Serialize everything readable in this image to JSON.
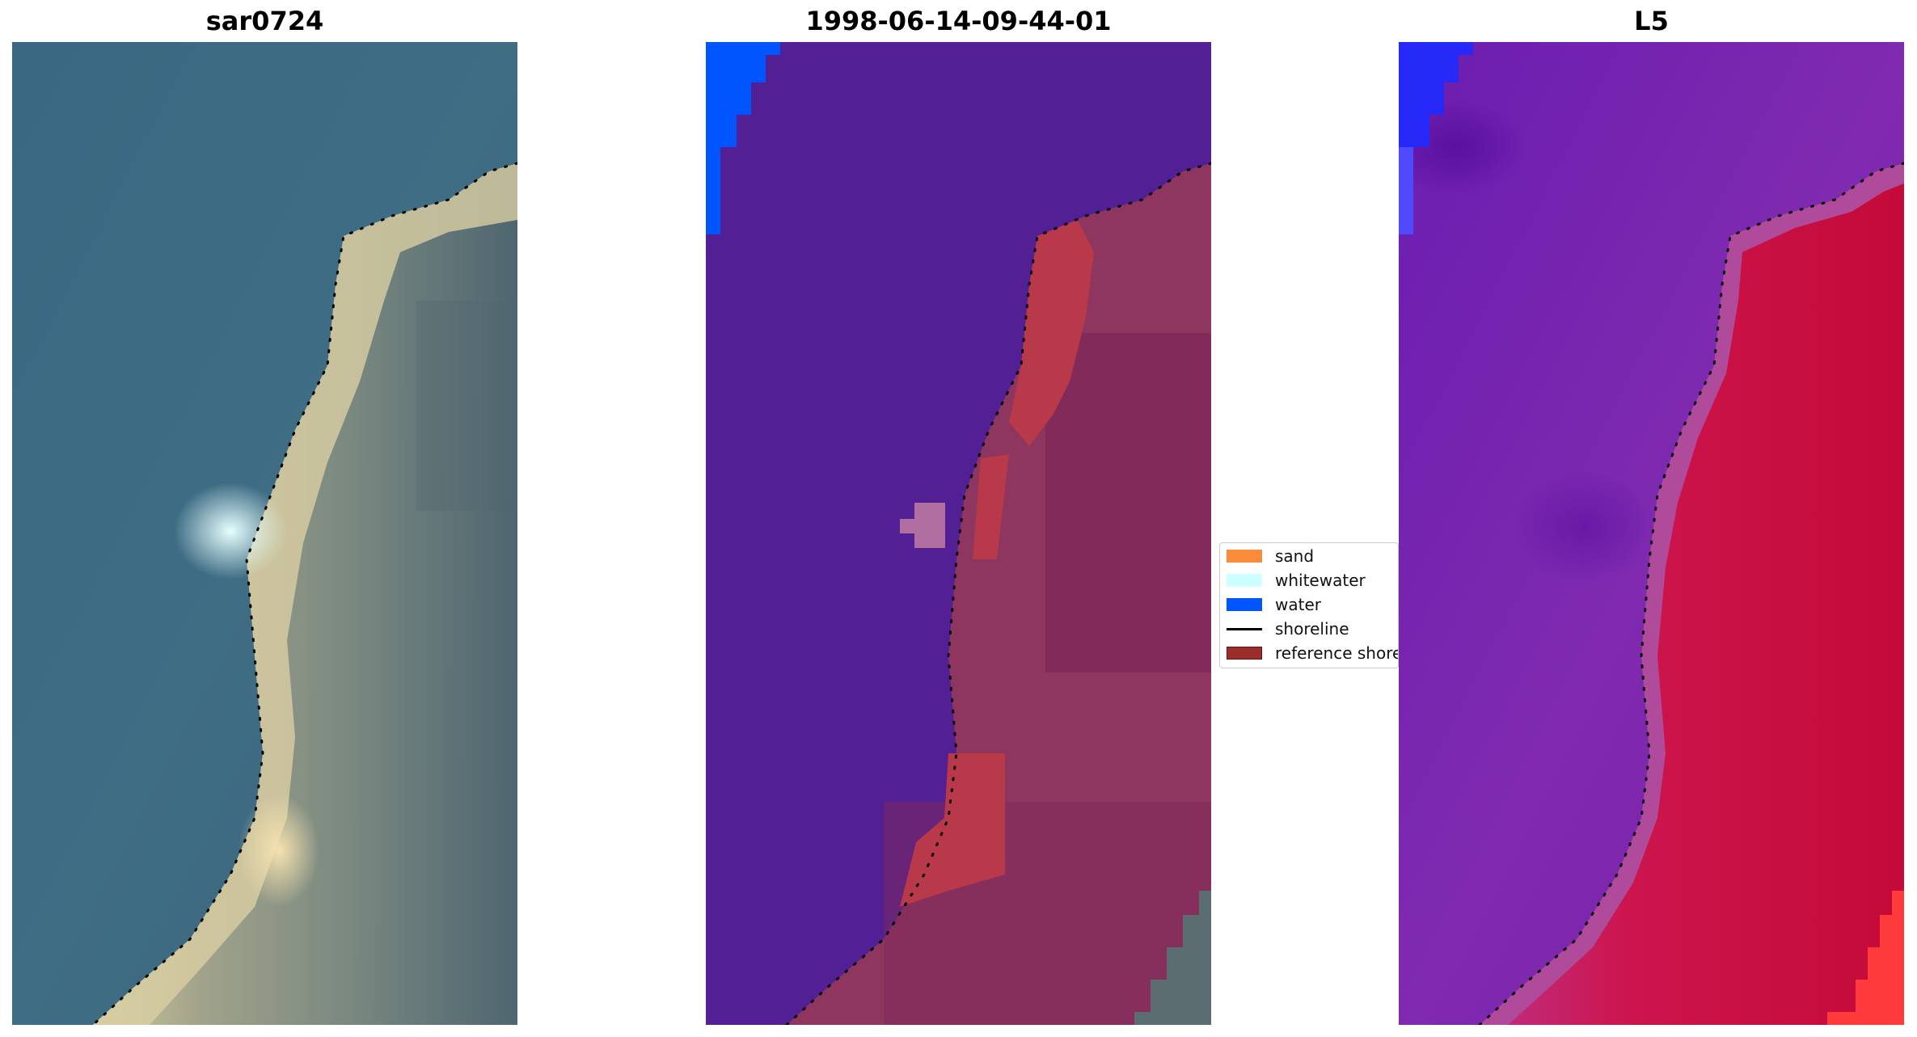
{
  "panels": [
    {
      "title": "sar0724"
    },
    {
      "title": "1998-06-14-09-44-01"
    },
    {
      "title": "L5"
    }
  ],
  "legend": {
    "items": [
      {
        "label": "sand",
        "color": "#fb8c3c",
        "kind": "patch"
      },
      {
        "label": "whitewater",
        "color": "#ccffff",
        "kind": "patch"
      },
      {
        "label": "water",
        "color": "#0055ff",
        "kind": "patch"
      },
      {
        "label": "shoreline",
        "color": "#000000",
        "kind": "line"
      },
      {
        "label": "reference shore",
        "color": "#9b2d2d",
        "kind": "patch"
      }
    ]
  },
  "colors": {
    "rgb_water": "#3d6a80",
    "rgb_sand": "#cbbf8f",
    "rgb_whitewater": "#c8fafa",
    "class_water_overlay": "#521f94",
    "class_land": "#8e3560",
    "class_reference": "#b8394a",
    "l5_water": "#7a20a8",
    "l5_land": "#c51040",
    "l5_blue": "#1f2bff"
  }
}
